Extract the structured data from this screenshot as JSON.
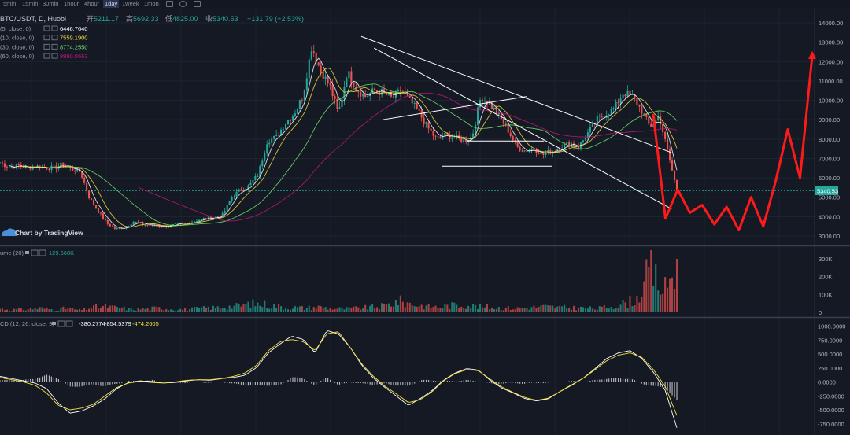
{
  "toolbar": {
    "timeframes": [
      "5min",
      "15min",
      "30min",
      "1hour",
      "4hour",
      "1day",
      "1week",
      "1mon"
    ],
    "active": "1day"
  },
  "symbol": {
    "title": "BTC/USDT, D, Huobi",
    "open_label": "开",
    "open": "5211.17",
    "high_label": "高",
    "high": "5692.33",
    "low_label": "低",
    "low": "4825.00",
    "close_label": "收",
    "close": "5340.53",
    "change": "+131.79 (+2.53%)"
  },
  "ma_legend": [
    {
      "label": "(5, close, 0)",
      "value": "6446.7640",
      "color": "#ffffff"
    },
    {
      "label": "(10, close, 0)",
      "value": "7559.1900",
      "color": "#f5e13c"
    },
    {
      "label": "(30, close, 0)",
      "value": "8774.2550",
      "color": "#6fe36f"
    },
    {
      "label": "(60, close, 0)",
      "value": "8990.0663",
      "color": "#c2187a"
    }
  ],
  "watermark": "Chart by TradingView",
  "last_price_tag": "5340.53",
  "colors": {
    "background": "#151924",
    "up": "#26a69a",
    "down": "#ef5350",
    "ma5": "#ffffff",
    "ma10": "#f5e13c",
    "ma30": "#6fe36f",
    "ma60": "#c2187a",
    "projection": "#ff1a1a",
    "last_price": "#26a69a"
  },
  "volume_legend": {
    "label": "ume (20)",
    "value": "129.668K"
  },
  "macd_legend": {
    "label": "CD (12, 26, close, 9)",
    "v1": "-380.2774",
    "v2": "-854.5379",
    "v3": "-474.2605"
  },
  "chart_data": [
    {
      "type": "candlestick",
      "title": "BTC/USDT, D, Huobi",
      "y_ticks": [
        "14000.00",
        "13000.00",
        "12000.00",
        "11000.00",
        "10000.00",
        "9000.00",
        "8000.00",
        "7000.00",
        "6000.00",
        "5000.00",
        "4000.00",
        "3000.00"
      ],
      "ylim": [
        2400,
        14400
      ],
      "close_path": [
        6800,
        6550,
        6650,
        6500,
        6600,
        6550,
        6500,
        6700,
        6450,
        6350,
        5000,
        4300,
        3650,
        3350,
        3450,
        3750,
        3600,
        3550,
        3500,
        3520,
        3600,
        3650,
        3800,
        3900,
        3950,
        4100,
        5000,
        5400,
        5600,
        6200,
        7900,
        8100,
        8800,
        9300,
        10200,
        12800,
        11500,
        10800,
        9300,
        11500,
        10600,
        10200,
        10500,
        10400,
        10100,
        10500,
        10000,
        9400,
        8600,
        8000,
        8200,
        8100,
        7900,
        8100,
        10200,
        9800,
        9200,
        8500,
        7600,
        7400,
        7500,
        7200,
        7400,
        7600,
        7800,
        7600,
        8300,
        9000,
        9300,
        9600,
        10400,
        10200,
        9500,
        8600,
        9200,
        7300,
        5340
      ],
      "trendlines": [
        {
          "from": [
            0.425,
            13300
          ],
          "to": [
            0.79,
            7300
          ]
        },
        {
          "from": [
            0.44,
            12700
          ],
          "to": [
            0.79,
            4400
          ]
        },
        {
          "from": [
            0.45,
            9000
          ],
          "to": [
            0.62,
            10200
          ]
        },
        {
          "from": [
            0.55,
            7900
          ],
          "to": [
            0.64,
            7900
          ]
        },
        {
          "from": [
            0.52,
            6600
          ],
          "to": [
            0.65,
            6600
          ]
        }
      ],
      "projection_path": [
        9300,
        3900,
        5400,
        4200,
        4600,
        3600,
        4500,
        3300,
        5000,
        3500,
        5800,
        8500,
        6000,
        12300
      ]
    },
    {
      "type": "bar",
      "name": "Volume",
      "y_ticks": [
        "300K",
        "200K",
        "100K",
        "0"
      ],
      "ylim": [
        0,
        360
      ],
      "values": [
        25,
        18,
        22,
        30,
        20,
        28,
        15,
        35,
        40,
        30,
        22,
        26,
        30,
        24,
        20,
        28,
        32,
        38,
        45,
        60,
        55,
        40,
        35,
        30,
        38,
        28,
        25,
        30,
        35,
        45,
        80,
        60,
        42,
        38,
        48,
        55,
        40,
        36,
        30,
        28,
        34,
        40,
        35,
        32,
        30,
        26,
        42,
        60,
        95,
        300,
        140,
        340
      ]
    },
    {
      "type": "line",
      "name": "MACD",
      "y_ticks": [
        "1000.0000",
        "750.0000",
        "500.0000",
        "250.0000",
        "0.0000",
        "-250.0000",
        "-500.0000",
        "-750.0000"
      ],
      "ylim": [
        -850,
        1050
      ],
      "macd": [
        100,
        60,
        20,
        -20,
        -120,
        -380,
        -560,
        -520,
        -430,
        -300,
        -120,
        -10,
        20,
        10,
        -20,
        -10,
        20,
        40,
        30,
        60,
        80,
        120,
        260,
        520,
        680,
        820,
        760,
        520,
        920,
        860,
        620,
        300,
        70,
        -100,
        -260,
        -420,
        -300,
        -160,
        30,
        160,
        240,
        210,
        30,
        -110,
        -200,
        -300,
        -340,
        -300,
        -170,
        -50,
        70,
        240,
        420,
        520,
        560,
        420,
        170,
        -150,
        -820
      ],
      "signal": [
        80,
        40,
        0,
        -60,
        -200,
        -420,
        -500,
        -470,
        -400,
        -250,
        -100,
        -20,
        10,
        -10,
        -20,
        0,
        30,
        40,
        40,
        60,
        100,
        160,
        300,
        560,
        720,
        760,
        720,
        560,
        860,
        900,
        620,
        320,
        100,
        -80,
        -220,
        -370,
        -320,
        -180,
        20,
        150,
        220,
        200,
        50,
        -90,
        -190,
        -280,
        -330,
        -290,
        -170,
        -60,
        70,
        220,
        380,
        480,
        520,
        440,
        220,
        -80,
        -600
      ]
    }
  ]
}
